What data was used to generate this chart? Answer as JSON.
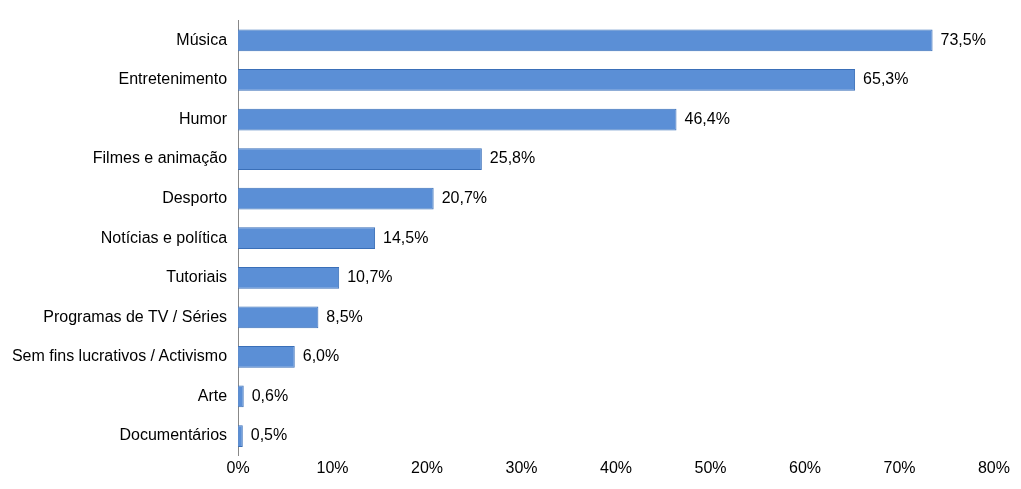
{
  "chart_data": {
    "type": "bar",
    "orientation": "horizontal",
    "categories": [
      "Música",
      "Entretenimento",
      "Humor",
      "Filmes e animação",
      "Desporto",
      "Notícias e política",
      "Tutoriais",
      "Programas de TV / Séries",
      "Sem fins lucrativos / Activismo",
      "Arte",
      "Documentários"
    ],
    "values": [
      73.5,
      65.3,
      46.4,
      25.8,
      20.7,
      14.5,
      10.7,
      8.5,
      6.0,
      0.6,
      0.5
    ],
    "value_labels": [
      "73,5%",
      "65,3%",
      "46,4%",
      "25,8%",
      "20,7%",
      "14,5%",
      "10,7%",
      "8,5%",
      "6,0%",
      "0,6%",
      "0,5%"
    ],
    "color": "#5b8fd6",
    "xlim": [
      0,
      80
    ],
    "xticks": [
      {
        "value": 0,
        "label": "0%"
      },
      {
        "value": 10,
        "label": "10%"
      },
      {
        "value": 20,
        "label": "20%"
      },
      {
        "value": 30,
        "label": "30%"
      },
      {
        "value": 40,
        "label": "40%"
      },
      {
        "value": 50,
        "label": "50%"
      },
      {
        "value": 60,
        "label": "60%"
      },
      {
        "value": 70,
        "label": "70%"
      },
      {
        "value": 80,
        "label": "80%"
      }
    ],
    "grid": false,
    "legend": false
  }
}
